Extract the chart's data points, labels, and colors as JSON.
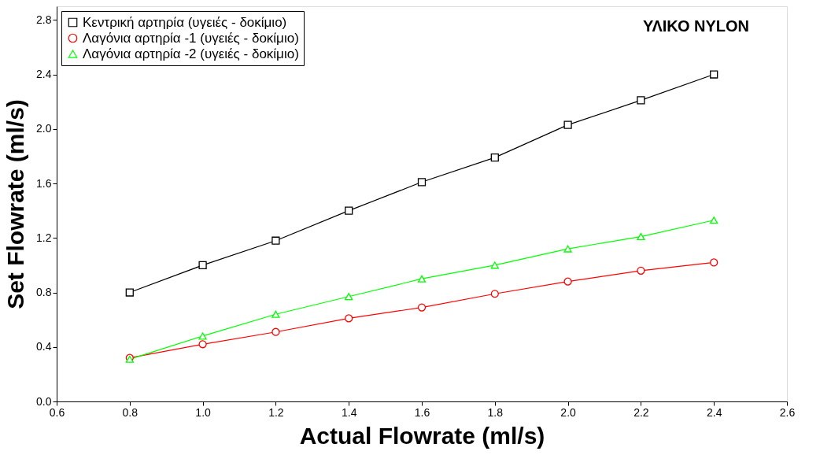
{
  "chart_data": {
    "type": "line",
    "title": "ΥΛΙΚΟ NYLON",
    "xlabel": "Actual Flowrate (ml/s)",
    "ylabel": "Set Flowrate (ml/s)",
    "x": [
      0.8,
      1.0,
      1.2,
      1.4,
      1.6,
      1.8,
      2.0,
      2.2,
      2.4
    ],
    "series": [
      {
        "name": "Κεντρική αρτηρία    (υγειές - δοκίμιο)",
        "color": "#000000",
        "marker": "square",
        "values": [
          0.8,
          1.0,
          1.18,
          1.4,
          1.61,
          1.79,
          2.03,
          2.21,
          2.4
        ]
      },
      {
        "name": "Λαγόνια αρτηρία -1 (υγειές - δοκίμιο)",
        "color": "#ff0000",
        "marker": "circle",
        "values": [
          0.32,
          0.42,
          0.51,
          0.61,
          0.69,
          0.79,
          0.88,
          0.96,
          1.02
        ]
      },
      {
        "name": "Λαγόνια αρτηρία -2 (υγειές - δοκίμιο)",
        "color": "#00ff00",
        "marker": "triangle",
        "values": [
          0.31,
          0.48,
          0.64,
          0.77,
          0.9,
          1.0,
          1.12,
          1.21,
          1.33
        ]
      }
    ],
    "xlim": [
      0.6,
      2.6
    ],
    "xticks": [
      0.6,
      {
        "value": 0.8,
        "label": "0.8"
      },
      {
        "value": 1.0,
        "label": "1.0"
      },
      1.2,
      1.4,
      1.6,
      1.8,
      {
        "value": 2.0,
        "label": "2.0"
      },
      2.2,
      2.4,
      2.6
    ],
    "ylim": [
      0.0,
      2.9
    ],
    "yticks": [
      {
        "value": 0.0,
        "label": "0.0"
      },
      0.4,
      0.8,
      1.2,
      1.6,
      {
        "value": 2.0,
        "label": "2.0"
      },
      2.4,
      2.8
    ],
    "legend": "top left",
    "grid": false,
    "line_style": "solid"
  }
}
